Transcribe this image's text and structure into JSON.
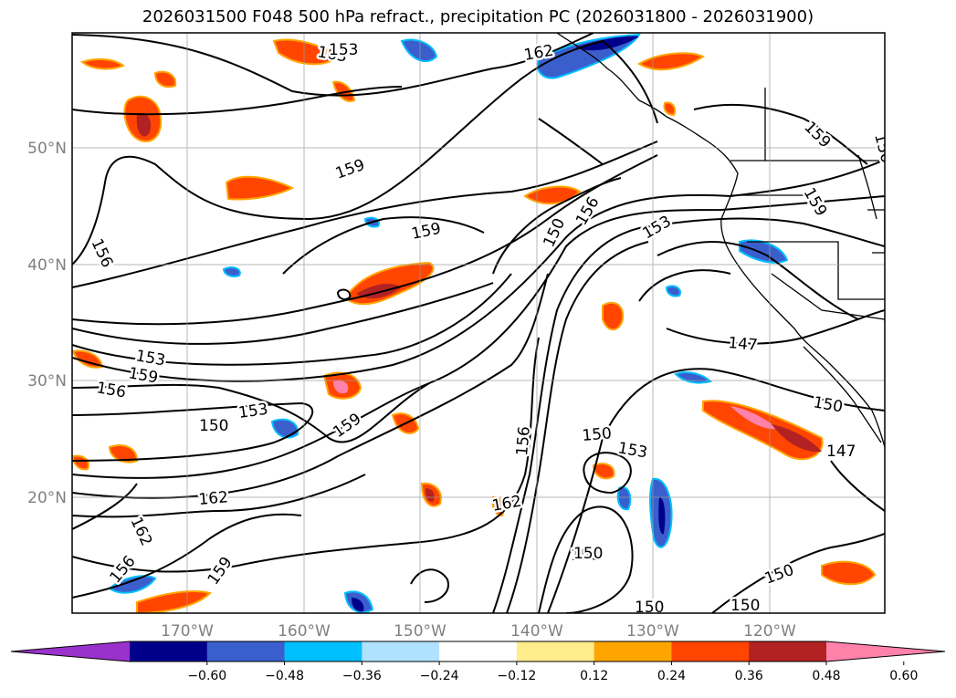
{
  "title": "2026031500 F048 500 hPa refract., precipitation PC (2026031800 - 2026031900)",
  "lat_labels": [
    "50°N",
    "40°N",
    "30°N",
    "20°N"
  ],
  "lon_labels": [
    "170°W",
    "160°W",
    "150°W",
    "140°W",
    "130°W",
    "120°W"
  ],
  "contour_labels": [
    "163",
    "162",
    "159",
    "159",
    "159",
    "159",
    "156",
    "156",
    "156",
    "153",
    "159",
    "156",
    "153",
    "150",
    "150",
    "150",
    "159",
    "162",
    "162",
    "156",
    "159",
    "153",
    "150",
    "156",
    "162",
    "150",
    "153",
    "150",
    "147",
    "150",
    "147",
    "150",
    "153",
    "150"
  ],
  "colorbar": {
    "ticks": [
      "−0.60",
      "−0.48",
      "−0.36",
      "−0.24",
      "−0.12",
      "0.12",
      "0.24",
      "0.36",
      "0.48",
      "0.60"
    ],
    "colors": [
      "#9932CC",
      "#00008B",
      "#3A5FCD",
      "#00BFFF",
      "#B0E2FF",
      "#FFFFFF",
      "#FFEC8B",
      "#FFA500",
      "#FF4500",
      "#B22222",
      "#FF82AB"
    ]
  }
}
